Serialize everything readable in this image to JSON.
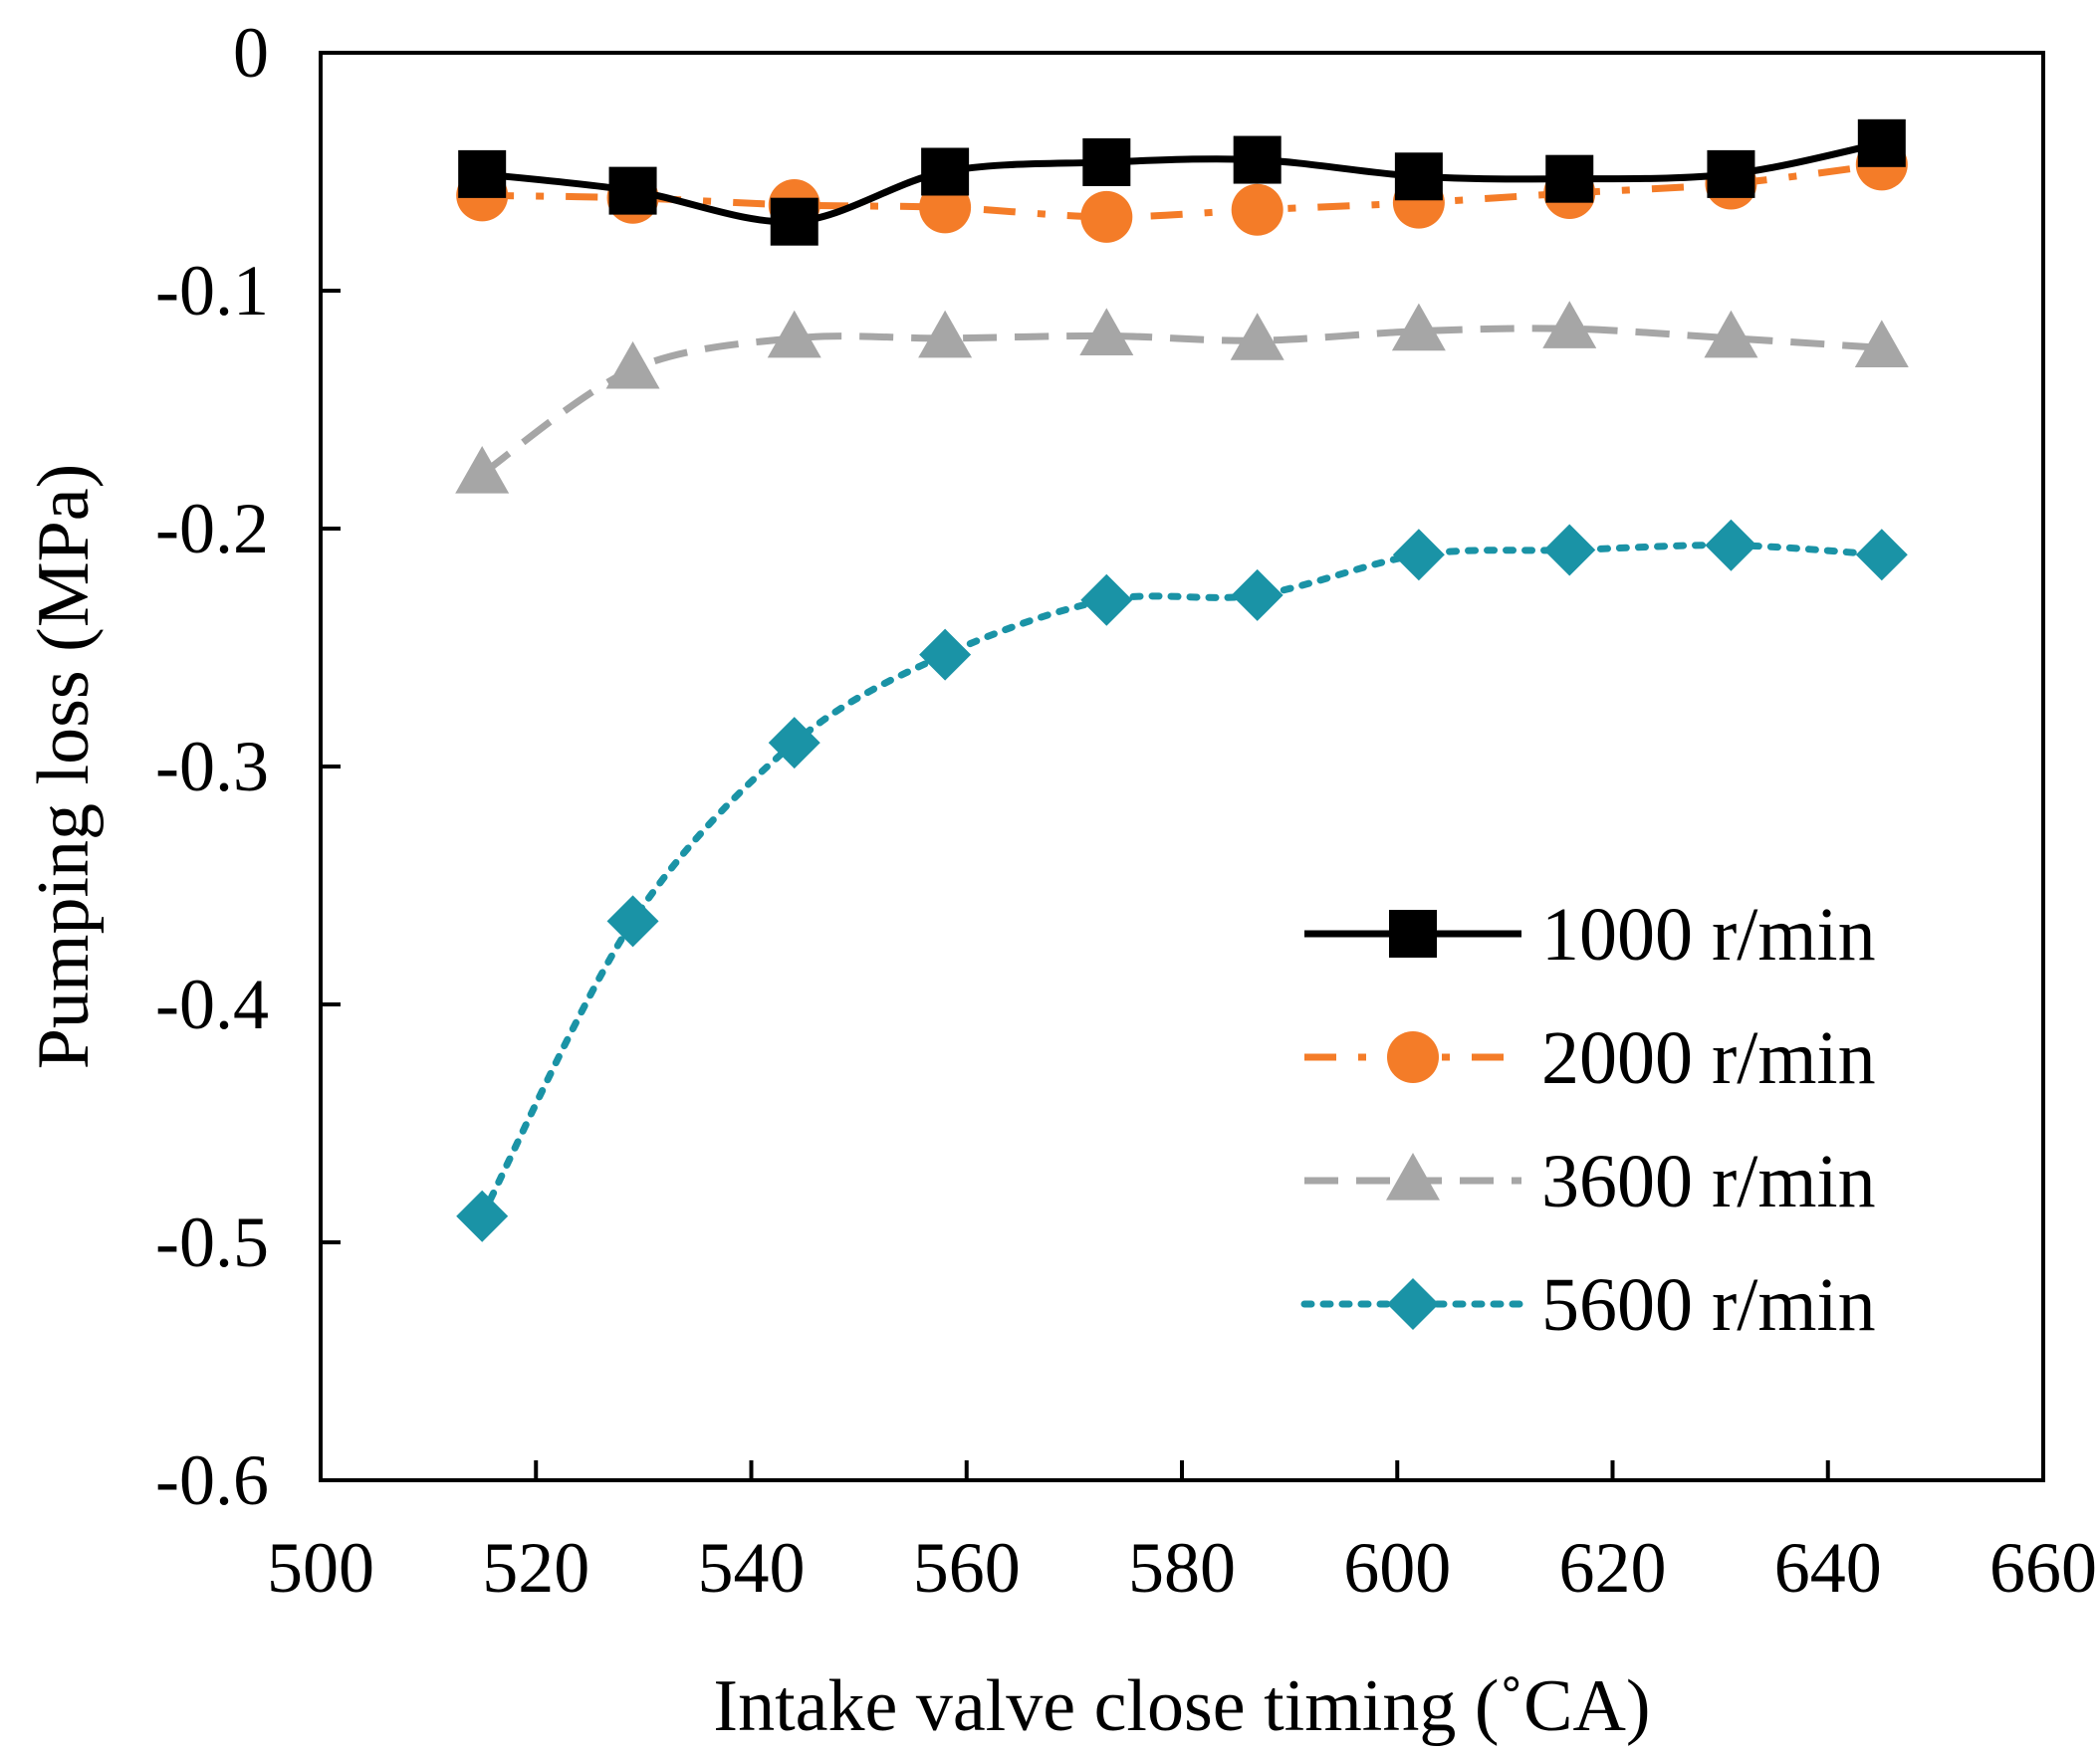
{
  "chart_data": {
    "type": "line",
    "title": "",
    "xlabel": "Intake valve close timing (˚CA)",
    "ylabel": "Pumping loss (MPa)",
    "xlim": [
      500,
      660
    ],
    "ylim": [
      -0.6,
      0
    ],
    "x_ticks": [
      500,
      520,
      540,
      560,
      580,
      600,
      620,
      640,
      660
    ],
    "x_tick_labels": [
      "500",
      "520",
      "540",
      "560",
      "580",
      "600",
      "620",
      "640",
      "660"
    ],
    "y_ticks": [
      0,
      -0.1,
      -0.2,
      -0.3,
      -0.4,
      -0.5,
      -0.6
    ],
    "y_tick_labels": [
      "0",
      "-0.1",
      "-0.2",
      "-0.3",
      "-0.4",
      "-0.5",
      "-0.6"
    ],
    "grid": false,
    "legend_position": "bottom-right",
    "x": [
      515,
      529,
      544,
      558,
      573,
      587,
      602,
      616,
      631,
      645
    ],
    "series": [
      {
        "name": "1000 r/min",
        "values": [
          -0.051,
          -0.058,
          -0.071,
          -0.05,
          -0.046,
          -0.045,
          -0.052,
          -0.053,
          -0.051,
          -0.038
        ],
        "color": "#000000",
        "marker": "square",
        "line_style": "solid"
      },
      {
        "name": "2000 r/min",
        "values": [
          -0.06,
          -0.061,
          -0.064,
          -0.065,
          -0.069,
          -0.066,
          -0.063,
          -0.059,
          -0.055,
          -0.047
        ],
        "color": "#f47c28",
        "marker": "circle",
        "line_style": "dash-dot"
      },
      {
        "name": "3600 r/min",
        "values": [
          -0.177,
          -0.133,
          -0.12,
          -0.12,
          -0.119,
          -0.121,
          -0.117,
          -0.116,
          -0.12,
          -0.124
        ],
        "color": "#a6a6a6",
        "marker": "triangle",
        "line_style": "dashed"
      },
      {
        "name": "5600 r/min",
        "values": [
          -0.489,
          -0.365,
          -0.29,
          -0.253,
          -0.23,
          -0.228,
          -0.211,
          -0.209,
          -0.207,
          -0.211
        ],
        "color": "#1a93a6",
        "marker": "diamond",
        "line_style": "dotted"
      }
    ]
  }
}
